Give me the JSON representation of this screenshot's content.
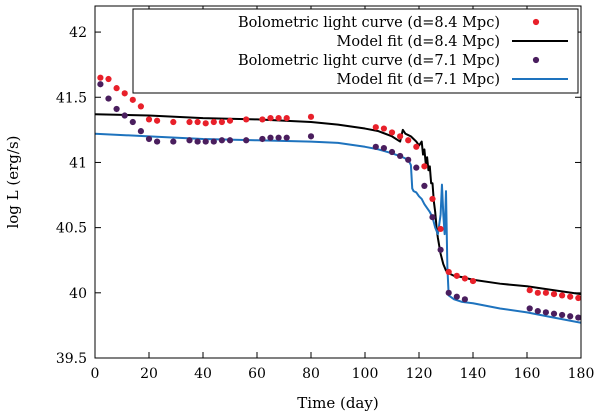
{
  "chart_data": {
    "type": "scatter",
    "title": "",
    "xlabel": "Time (day)",
    "ylabel": "log L (erg/s)",
    "xlim": [
      0,
      180
    ],
    "ylim": [
      39.5,
      42.2
    ],
    "xticks": [
      0,
      20,
      40,
      60,
      80,
      100,
      120,
      140,
      160,
      180
    ],
    "yticks": [
      39.5,
      40,
      40.5,
      41,
      41.5,
      42
    ],
    "grid": false,
    "legend_position": "top-right",
    "series": [
      {
        "name": "Bolometric light curve (d=8.4 Mpc)",
        "kind": "points",
        "color": "#e8202a",
        "x": [
          2,
          5,
          8,
          11,
          14,
          17,
          20,
          23,
          29,
          35,
          38,
          41,
          44,
          47,
          50,
          56,
          62,
          65,
          68,
          71,
          80,
          104,
          107,
          110,
          113,
          116,
          119,
          122,
          125,
          128,
          131,
          134,
          137,
          140,
          161,
          164,
          167,
          170,
          173,
          176,
          179
        ],
        "y": [
          41.65,
          41.64,
          41.57,
          41.53,
          41.48,
          41.43,
          41.33,
          41.32,
          41.31,
          41.31,
          41.31,
          41.3,
          41.31,
          41.31,
          41.32,
          41.33,
          41.33,
          41.34,
          41.34,
          41.34,
          41.35,
          41.27,
          41.26,
          41.23,
          41.2,
          41.17,
          41.12,
          40.97,
          40.72,
          40.49,
          40.16,
          40.13,
          40.11,
          40.09,
          40.02,
          40.0,
          40.0,
          39.99,
          39.98,
          39.97,
          39.96
        ]
      },
      {
        "name": "Model fit (d=8.4 Mpc)",
        "kind": "line",
        "color": "#000000",
        "x": [
          0,
          20,
          40,
          60,
          80,
          90,
          100,
          105,
          110,
          113,
          114,
          115,
          116,
          117,
          118,
          119,
          120,
          121,
          121.5,
          122,
          122.5,
          123,
          123.5,
          124,
          124.5,
          125,
          125.5,
          126,
          126.5,
          127,
          128,
          129,
          130,
          131,
          133,
          136,
          140,
          150,
          160,
          170,
          180
        ],
        "y": [
          41.37,
          41.36,
          41.34,
          41.33,
          41.31,
          41.29,
          41.26,
          41.24,
          41.2,
          41.16,
          41.25,
          41.22,
          41.21,
          41.2,
          41.18,
          41.16,
          41.13,
          41.16,
          41.06,
          41.1,
          40.99,
          41.04,
          40.94,
          40.97,
          40.84,
          40.84,
          40.7,
          40.62,
          40.5,
          40.42,
          40.3,
          40.22,
          40.17,
          40.15,
          40.13,
          40.12,
          40.1,
          40.07,
          40.05,
          40.02,
          39.99
        ]
      },
      {
        "name": "Bolometric light curve (d=7.1 Mpc)",
        "kind": "points",
        "color": "#4a1e5e",
        "x": [
          2,
          5,
          8,
          11,
          14,
          17,
          20,
          23,
          29,
          35,
          38,
          41,
          44,
          47,
          50,
          56,
          62,
          65,
          68,
          71,
          80,
          104,
          107,
          110,
          113,
          116,
          119,
          122,
          125,
          128,
          131,
          134,
          137,
          161,
          164,
          167,
          170,
          173,
          176,
          179
        ],
        "y": [
          41.6,
          41.49,
          41.41,
          41.36,
          41.31,
          41.24,
          41.18,
          41.16,
          41.16,
          41.17,
          41.16,
          41.16,
          41.16,
          41.17,
          41.17,
          41.17,
          41.18,
          41.19,
          41.19,
          41.19,
          41.2,
          41.12,
          41.11,
          41.08,
          41.05,
          41.02,
          40.96,
          40.82,
          40.58,
          40.33,
          40.0,
          39.97,
          39.95,
          39.88,
          39.86,
          39.85,
          39.84,
          39.83,
          39.82,
          39.81
        ]
      },
      {
        "name": "Model fit (d=7.1 Mpc)",
        "kind": "line",
        "color": "#1e73be",
        "x": [
          0,
          20,
          40,
          60,
          80,
          90,
          100,
          105,
          110,
          114,
          116,
          117,
          117.5,
          118,
          119,
          120,
          121,
          122,
          123,
          124,
          125,
          126,
          127,
          128,
          128.5,
          129,
          129.5,
          130,
          130.5,
          131,
          133,
          136,
          140,
          150,
          160,
          170,
          180
        ],
        "y": [
          41.22,
          41.2,
          41.18,
          41.17,
          41.16,
          41.15,
          41.12,
          41.1,
          41.07,
          41.04,
          41.02,
          40.98,
          40.8,
          40.78,
          40.77,
          40.74,
          40.72,
          40.68,
          40.65,
          40.62,
          40.58,
          40.5,
          40.45,
          40.6,
          40.83,
          40.6,
          40.45,
          40.78,
          40.2,
          39.98,
          39.95,
          39.93,
          39.92,
          39.88,
          39.85,
          39.81,
          39.77
        ]
      }
    ]
  }
}
